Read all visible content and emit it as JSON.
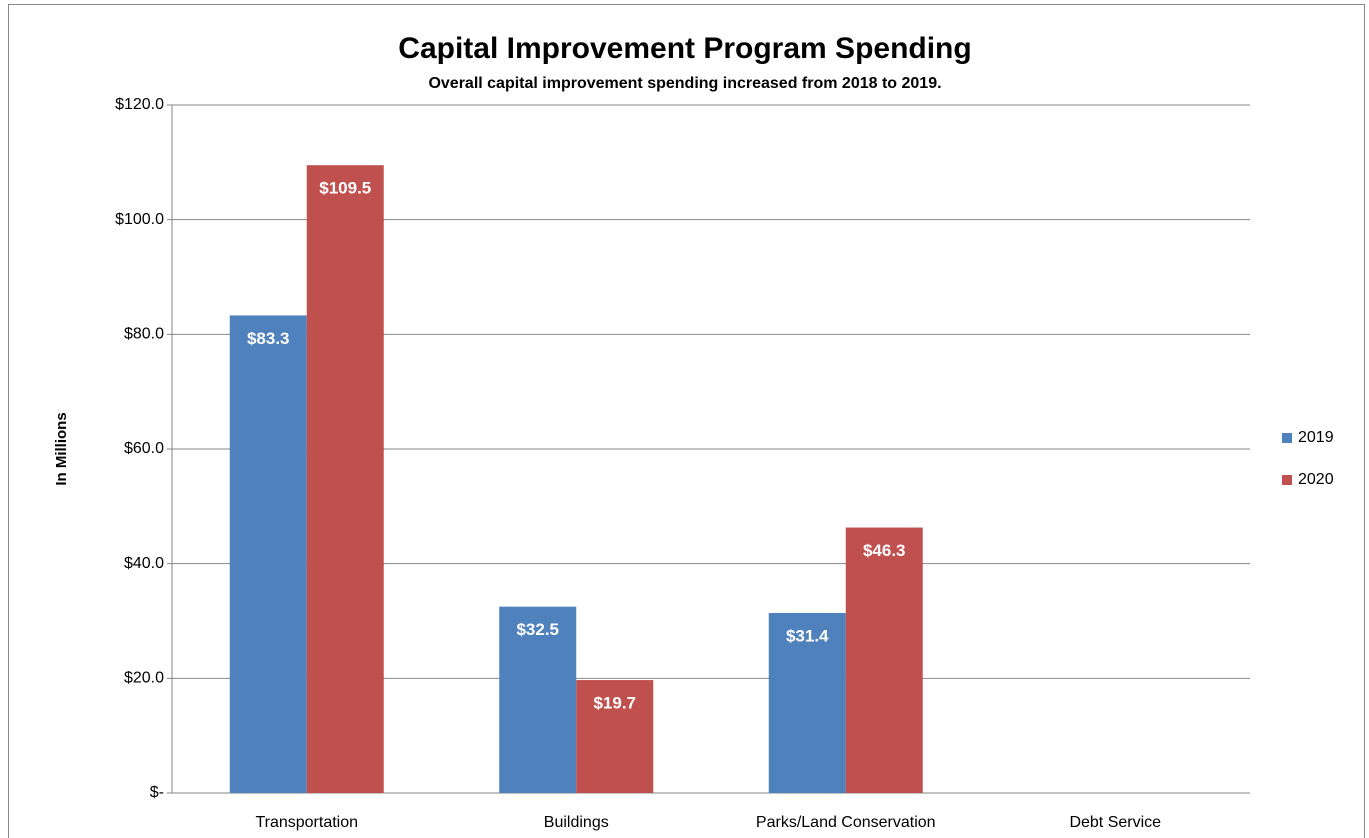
{
  "chart_data": {
    "type": "bar",
    "title": "Capital Improvement Program Spending",
    "subtitle": "Overall capital improvement spending increased from 2018 to 2019.",
    "y_label": "In Millions",
    "categories": [
      "Transportation",
      "Buildings",
      "Parks/Land Conservation",
      "Debt Service"
    ],
    "series": [
      {
        "name": "2019",
        "color": "#4f81bd",
        "values": [
          83.3,
          32.5,
          31.4,
          null
        ],
        "value_labels": [
          "$83.3",
          "$32.5",
          "$31.4",
          null
        ]
      },
      {
        "name": "2020",
        "color": "#c0504d",
        "values": [
          109.5,
          19.7,
          46.3,
          null
        ],
        "value_labels": [
          "$109.5",
          "$19.7",
          "$46.3",
          null
        ]
      }
    ],
    "ylim": [
      0,
      120
    ],
    "yticks": [
      {
        "value": 0,
        "label": "$-"
      },
      {
        "value": 20,
        "label": "$20.0"
      },
      {
        "value": 40,
        "label": "$40.0"
      },
      {
        "value": 60,
        "label": "$60.0"
      },
      {
        "value": 80,
        "label": "$80.0"
      },
      {
        "value": 100,
        "label": "$100.0"
      },
      {
        "value": 120,
        "label": "$120.0"
      }
    ],
    "grid": true,
    "legend": "right"
  }
}
